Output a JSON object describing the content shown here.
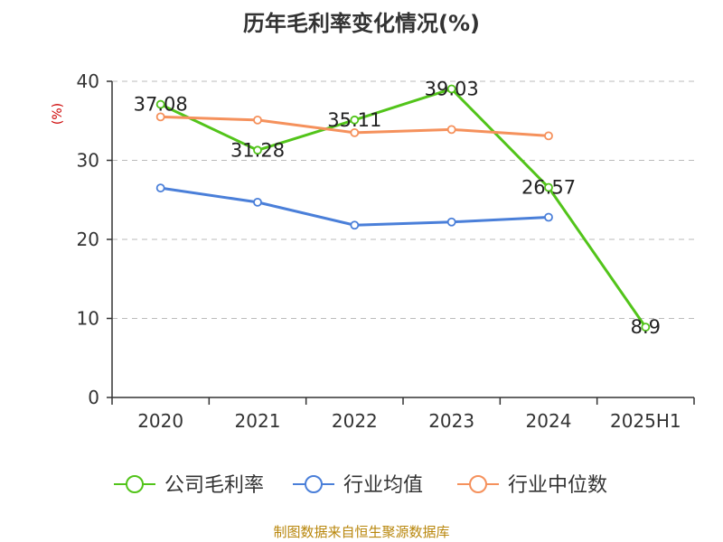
{
  "chart_data": {
    "type": "line",
    "title": "历年毛利率变化情况(%)",
    "ylabel": "(%)",
    "xlabel": "",
    "categories": [
      "2020",
      "2021",
      "2022",
      "2023",
      "2024",
      "2025H1"
    ],
    "ylim": [
      0,
      40
    ],
    "yticks": [
      0,
      10,
      20,
      30,
      40
    ],
    "grid": true,
    "legend_position": "bottom",
    "series": [
      {
        "name": "公司毛利率",
        "color": "#52c41a",
        "values": [
          37.08,
          31.28,
          35.11,
          39.03,
          26.57,
          8.9
        ],
        "labels": [
          "37.08",
          "31.28",
          "35.11",
          "39.03",
          "26.57",
          "8.9"
        ]
      },
      {
        "name": "行业均值",
        "color": "#4a7fd9",
        "values": [
          26.5,
          24.7,
          21.8,
          22.2,
          22.8,
          null
        ]
      },
      {
        "name": "行业中位数",
        "color": "#f5915c",
        "values": [
          35.5,
          35.1,
          33.5,
          33.9,
          33.1,
          null
        ]
      }
    ]
  },
  "source_text": "制图数据来自恒生聚源数据库"
}
